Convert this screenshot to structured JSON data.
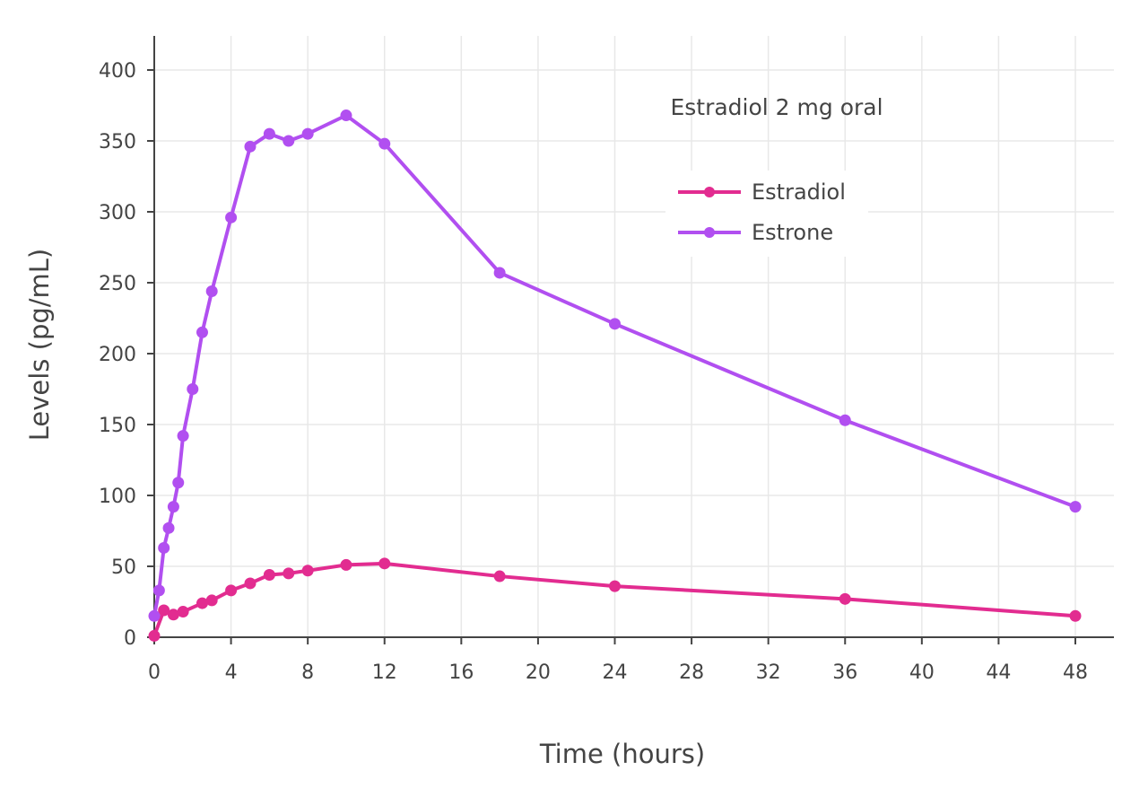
{
  "chart_data": {
    "type": "line",
    "title": "",
    "annotation": "Estradiol 2 mg oral",
    "xlabel": "Time (hours)",
    "ylabel": "Levels (pg/mL)",
    "xlim": [
      -0.7,
      50.5
    ],
    "ylim": [
      -8,
      425
    ],
    "xticks": [
      0,
      4,
      8,
      12,
      16,
      20,
      24,
      28,
      32,
      36,
      40,
      44,
      48
    ],
    "yticks": [
      0,
      50,
      100,
      150,
      200,
      250,
      300,
      350,
      400
    ],
    "grid": true,
    "legend_position": "top-right",
    "series": [
      {
        "name": "Estradiol",
        "color": "#e22c90",
        "x": [
          0,
          0.5,
          1,
          1.5,
          2.5,
          3,
          4,
          5,
          6,
          7,
          8,
          10,
          12,
          18,
          24,
          36,
          48
        ],
        "y": [
          1,
          19,
          16,
          18,
          24,
          26,
          33,
          38,
          44,
          45,
          47,
          51,
          52,
          43,
          36,
          27,
          15
        ]
      },
      {
        "name": "Estrone",
        "color": "#b14ff0",
        "x": [
          0,
          0.25,
          0.5,
          0.75,
          1,
          1.25,
          1.5,
          2,
          2.5,
          3,
          4,
          5,
          6,
          7,
          8,
          10,
          12,
          18,
          24,
          36,
          48
        ],
        "y": [
          15,
          33,
          63,
          77,
          92,
          109,
          142,
          175,
          215,
          244,
          296,
          346,
          355,
          350,
          355,
          368,
          348,
          257,
          221,
          153,
          92
        ]
      }
    ]
  }
}
